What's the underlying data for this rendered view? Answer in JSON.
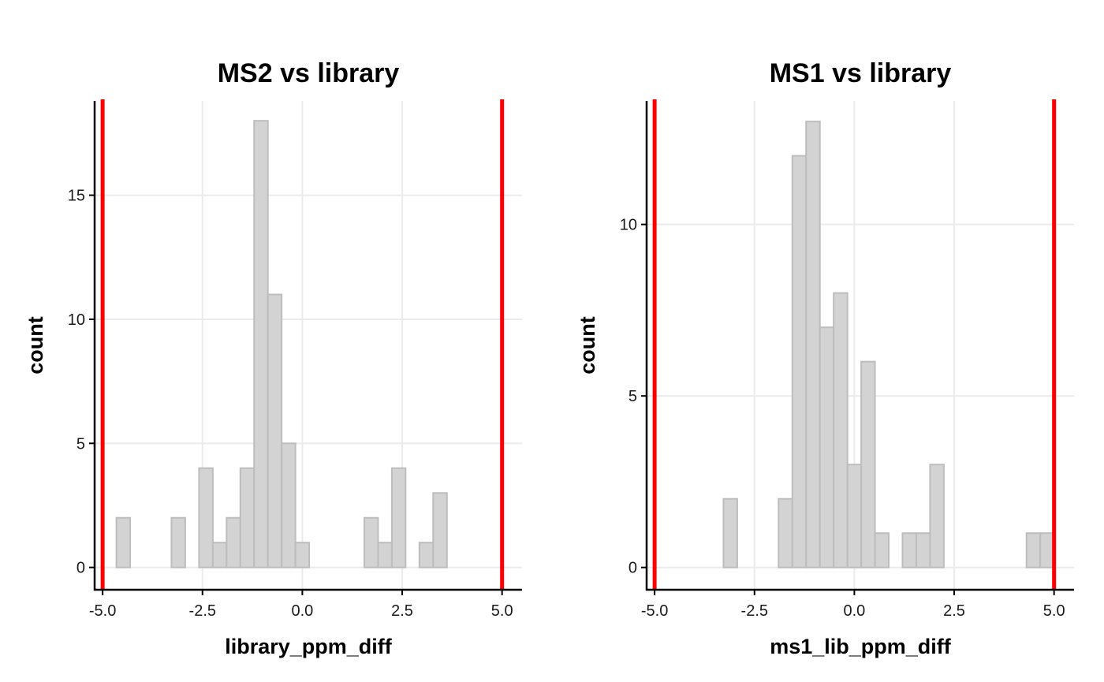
{
  "colors": {
    "bar_fill": "#d3d3d3",
    "bar_stroke": "#bdbdbd",
    "reference_line": "#ff0000",
    "grid": "#ebebeb",
    "axis": "#000000"
  },
  "chart_data": [
    {
      "type": "bar",
      "title": "MS2 vs library",
      "xlabel": "library_ppm_diff",
      "ylabel": "count",
      "xlim": [
        -5.2,
        5.5
      ],
      "ylim": [
        -0.9,
        18.8
      ],
      "xticks": [
        -5.0,
        -2.5,
        0.0,
        2.5,
        5.0
      ],
      "xtick_labels": [
        "-5.0",
        "-2.5",
        "0.0",
        "2.5",
        "5.0"
      ],
      "yticks": [
        0,
        5,
        10,
        15
      ],
      "ytick_labels": [
        "0",
        "5",
        "10",
        "15"
      ],
      "grid": true,
      "reference_lines_x": [
        -5,
        5
      ],
      "bin_start": -5.0,
      "bin_width": 0.3448,
      "values": [
        0,
        2,
        0,
        0,
        0,
        2,
        0,
        4,
        1,
        2,
        4,
        18,
        11,
        5,
        1,
        0,
        0,
        0,
        0,
        2,
        1,
        4,
        0,
        1,
        3,
        0,
        0,
        0,
        0
      ]
    },
    {
      "type": "bar",
      "title": "MS1 vs library",
      "xlabel": "ms1_lib_ppm_diff",
      "ylabel": "count",
      "xlim": [
        -5.2,
        5.5
      ],
      "ylim": [
        -0.65,
        13.6
      ],
      "xticks": [
        -5.0,
        -2.5,
        0.0,
        2.5,
        5.0
      ],
      "xtick_labels": [
        "-5.0",
        "-2.5",
        "0.0",
        "2.5",
        "5.0"
      ],
      "yticks": [
        0,
        5,
        10
      ],
      "ytick_labels": [
        "0",
        "5",
        "10"
      ],
      "grid": true,
      "reference_lines_x": [
        -5,
        5
      ],
      "bin_start": -5.0,
      "bin_width": 0.3448,
      "values": [
        0,
        0,
        0,
        0,
        0,
        2,
        0,
        0,
        0,
        2,
        12,
        13,
        7,
        8,
        3,
        6,
        1,
        0,
        1,
        1,
        3,
        0,
        0,
        0,
        0,
        0,
        0,
        1,
        1
      ]
    }
  ]
}
